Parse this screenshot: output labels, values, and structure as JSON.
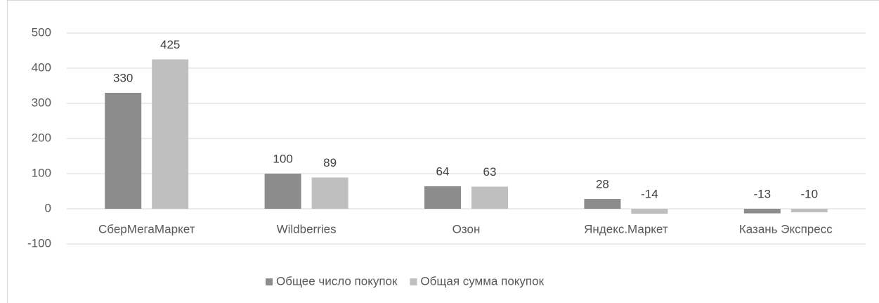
{
  "chart_data": {
    "type": "bar",
    "categories": [
      "СберМегаМаркет",
      "Wildberries",
      "Озон",
      "Яндекс.Маркет",
      "Казань Экспресс"
    ],
    "series": [
      {
        "name": "Общее число покупок",
        "color": "#8c8c8c",
        "values": [
          330,
          100,
          64,
          28,
          -13
        ]
      },
      {
        "name": "Общая сумма покупок",
        "color": "#bfbfbf",
        "values": [
          425,
          89,
          63,
          -14,
          -10
        ]
      }
    ],
    "ylim": [
      -100,
      500
    ],
    "yticks": [
      -100,
      0,
      100,
      200,
      300,
      400,
      500
    ],
    "grid": true,
    "legend": "bottom"
  }
}
